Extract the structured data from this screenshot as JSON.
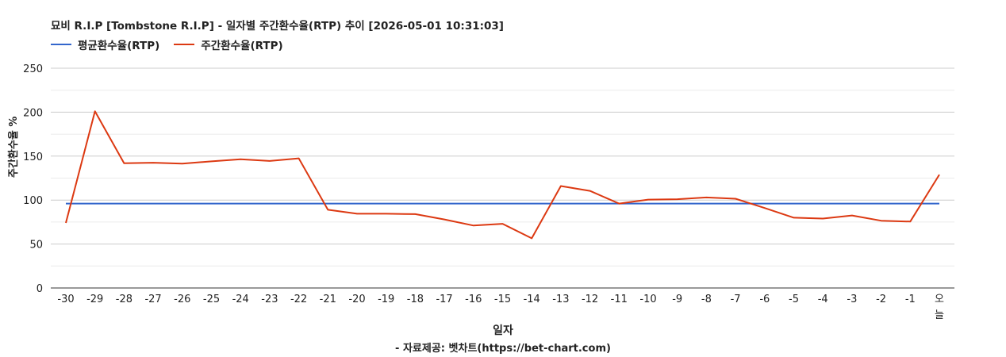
{
  "chart_data": {
    "type": "line",
    "title": "묘비 R.I.P [Tombstone R.I.P] - 일자별 주간환수율(RTP) 추이 [2026-05-01 10:31:03]",
    "xlabel": "일자",
    "ylabel": "주간환수율 %",
    "source": "- 자료제공: 벳차트(https://bet-chart.com)",
    "ylim": [
      0,
      250
    ],
    "yticks": [
      "0",
      "50",
      "100",
      "150",
      "200",
      "250"
    ],
    "grid": true,
    "legend_position": "top-left",
    "categories": [
      "-30",
      "-29",
      "-28",
      "-27",
      "-26",
      "-25",
      "-24",
      "-23",
      "-22",
      "-21",
      "-20",
      "-19",
      "-18",
      "-17",
      "-16",
      "-15",
      "-14",
      "-13",
      "-12",
      "-11",
      "-10",
      "-9",
      "-8",
      "-7",
      "-6",
      "-5",
      "-4",
      "-3",
      "-2",
      "-1",
      "오늘"
    ],
    "series": [
      {
        "name": "평균환수율(RTP)",
        "color": "#3366cc",
        "values": [
          96,
          96,
          96,
          96,
          96,
          96,
          96,
          96,
          96,
          96,
          96,
          96,
          96,
          96,
          96,
          96,
          96,
          96,
          96,
          96,
          96,
          96,
          96,
          96,
          96,
          96,
          96,
          96,
          96,
          96,
          96
        ]
      },
      {
        "name": "주간환수율(RTP)",
        "color": "#dc3912",
        "values": [
          74,
          201,
          142,
          142.5,
          141.5,
          144,
          146.5,
          144.5,
          147.5,
          89,
          84.5,
          84.5,
          84,
          78,
          71,
          73,
          56.5,
          116,
          110.5,
          96,
          100.5,
          101,
          103,
          101.5,
          91,
          80,
          79,
          82.5,
          76.5,
          75.5,
          129
        ]
      }
    ]
  }
}
